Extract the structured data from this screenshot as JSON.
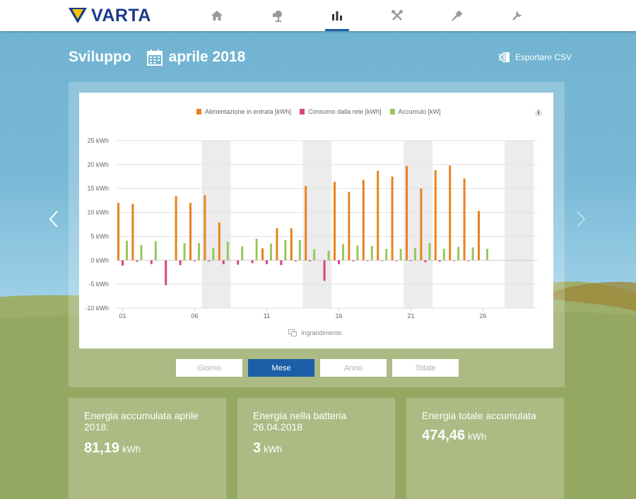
{
  "brand": {
    "name": "VARTA"
  },
  "nav": {
    "items": [
      {
        "icon": "home-icon",
        "active": false
      },
      {
        "icon": "solar-panel-icon",
        "active": false
      },
      {
        "icon": "bar-chart-icon",
        "active": true
      },
      {
        "icon": "tools-icon",
        "active": false
      },
      {
        "icon": "plug-icon",
        "active": false
      },
      {
        "icon": "wrench-icon",
        "active": false
      }
    ]
  },
  "page": {
    "title": "Sviluppo",
    "month": "aprile 2018",
    "export_label": "Esportare CSV"
  },
  "colors": {
    "feed_in": "#e8821e",
    "grid": "#d9447e",
    "storage": "#9ac65a",
    "accent": "#1b5fa8"
  },
  "chart_data": {
    "type": "bar",
    "legend": [
      "Alimentazione in entrata [kWh]",
      "Consumo dalla rete [kWh]",
      "Accumulo [kW]"
    ],
    "y_ticks": [
      "25 kWh",
      "20 kWh",
      "15 kWh",
      "10 kWh",
      "5 kWh",
      "0 kWh",
      "-5 kWh",
      "-10 kWh"
    ],
    "ylim": [
      -10,
      25
    ],
    "x_ticks": [
      {
        "day": 1,
        "label": "01"
      },
      {
        "day": 6,
        "label": "06"
      },
      {
        "day": 11,
        "label": "11"
      },
      {
        "day": 16,
        "label": "16"
      },
      {
        "day": 21,
        "label": "21"
      },
      {
        "day": 26,
        "label": "26"
      }
    ],
    "weekend_days": [
      7,
      8,
      14,
      15,
      21,
      22,
      28,
      29
    ],
    "days": [
      1,
      2,
      3,
      4,
      5,
      6,
      7,
      8,
      9,
      10,
      11,
      12,
      13,
      14,
      15,
      16,
      17,
      18,
      19,
      20,
      21,
      22,
      23,
      24,
      25,
      26,
      27,
      28,
      29
    ],
    "series": [
      {
        "name": "Alimentazione in entrata [kWh]",
        "color": "#e8821e",
        "values": [
          12,
          11.8,
          0,
          0,
          13.4,
          12,
          13.6,
          7.9,
          0,
          0,
          2.5,
          6.7,
          6.7,
          15.5,
          0,
          16.4,
          14.3,
          16.8,
          18.7,
          17.5,
          19.7,
          15,
          18.8,
          19.8,
          17.1,
          10.3,
          0,
          0,
          0
        ]
      },
      {
        "name": "Consumo dalla rete [kWh]",
        "color": "#d9447e",
        "values": [
          -1.1,
          -0.3,
          -0.8,
          -5.2,
          -1,
          -0.2,
          -0.2,
          -0.8,
          -0.9,
          -0.6,
          -0.8,
          -1,
          -0.2,
          -0.2,
          -4.3,
          -0.8,
          -0.2,
          -0.1,
          -0.1,
          -0.1,
          -0.1,
          -0.4,
          -0.3,
          -0.1,
          -0.1,
          0,
          0,
          0,
          0
        ]
      },
      {
        "name": "Accumulo [kW]",
        "color": "#9ac65a",
        "values": [
          4.1,
          3.2,
          4,
          0,
          3.6,
          3.6,
          2.6,
          3.9,
          2.9,
          4.5,
          3.5,
          4.2,
          4.2,
          2.3,
          2,
          3.4,
          3.1,
          3,
          2.4,
          2.4,
          2.6,
          3.6,
          2.4,
          2.8,
          2.7,
          2.4,
          0,
          0,
          0
        ]
      }
    ],
    "zoom_label": "Ingrandimento",
    "grid": true,
    "legend_position": "top"
  },
  "periods": [
    {
      "label": "Giorno",
      "active": false
    },
    {
      "label": "Mese",
      "active": true
    },
    {
      "label": "Anno",
      "active": false
    },
    {
      "label": "Totale",
      "active": false
    }
  ],
  "stats": [
    {
      "label": "Energia accumulata aprile 2018:",
      "value": "81,19",
      "unit": "kWh"
    },
    {
      "label": "Energia nella batteria 26.04.2018",
      "value": "3",
      "unit": "kWh"
    },
    {
      "label": "Energia totale accumulata",
      "value": "474,46",
      "unit": "kWh"
    }
  ]
}
